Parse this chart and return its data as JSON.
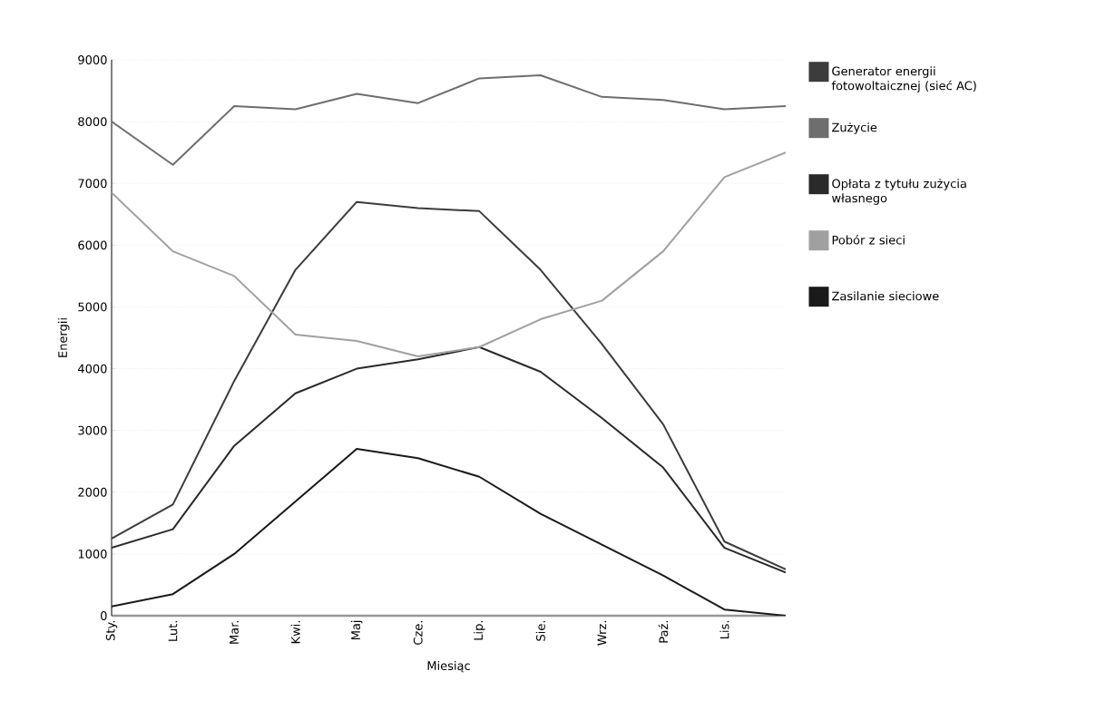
{
  "chart_data": {
    "type": "line",
    "xlabel": "Miesiąc",
    "ylabel": "Energii",
    "categories": [
      "Sty.",
      "Lut.",
      "Mar.",
      "Kwi.",
      "Maj",
      "Cze.",
      "Lip.",
      "Sie.",
      "Wrz.",
      "Paź.",
      "Lis.",
      null
    ],
    "series": [
      {
        "name": "Generator energii fotowoltaicznej (sieć AC)",
        "color": "#3c3c3c",
        "values": [
          1250,
          1800,
          3800,
          5600,
          6700,
          6600,
          6550,
          5600,
          4400,
          3100,
          1200,
          750
        ]
      },
      {
        "name": "Zużycie",
        "color": "#6e6e6e",
        "values": [
          8000,
          7300,
          8250,
          8200,
          8450,
          8300,
          8700,
          8750,
          8400,
          8350,
          8200,
          8250
        ]
      },
      {
        "name": "Opłata z tytułu zużycia własnego",
        "color": "#2a2a2a",
        "values": [
          1100,
          1400,
          2750,
          3600,
          4000,
          4150,
          4350,
          3950,
          3200,
          2400,
          1100,
          700
        ]
      },
      {
        "name": "Pobór z sieci",
        "color": "#a0a0a0",
        "values": [
          6850,
          5900,
          5500,
          4550,
          4450,
          4200,
          4350,
          4800,
          5100,
          5900,
          7100,
          7500
        ]
      },
      {
        "name": "Zasilanie sieciowe",
        "color": "#1a1a1a",
        "values": [
          150,
          350,
          1000,
          1850,
          2700,
          2550,
          2250,
          1650,
          1150,
          650,
          100,
          0
        ]
      }
    ],
    "ylim": [
      0,
      9000
    ],
    "yticks": [
      0,
      1000,
      2000,
      3000,
      4000,
      5000,
      6000,
      7000,
      8000,
      9000
    ],
    "grid": "y",
    "legend": "right",
    "marker": "none",
    "line_style": "solid"
  }
}
